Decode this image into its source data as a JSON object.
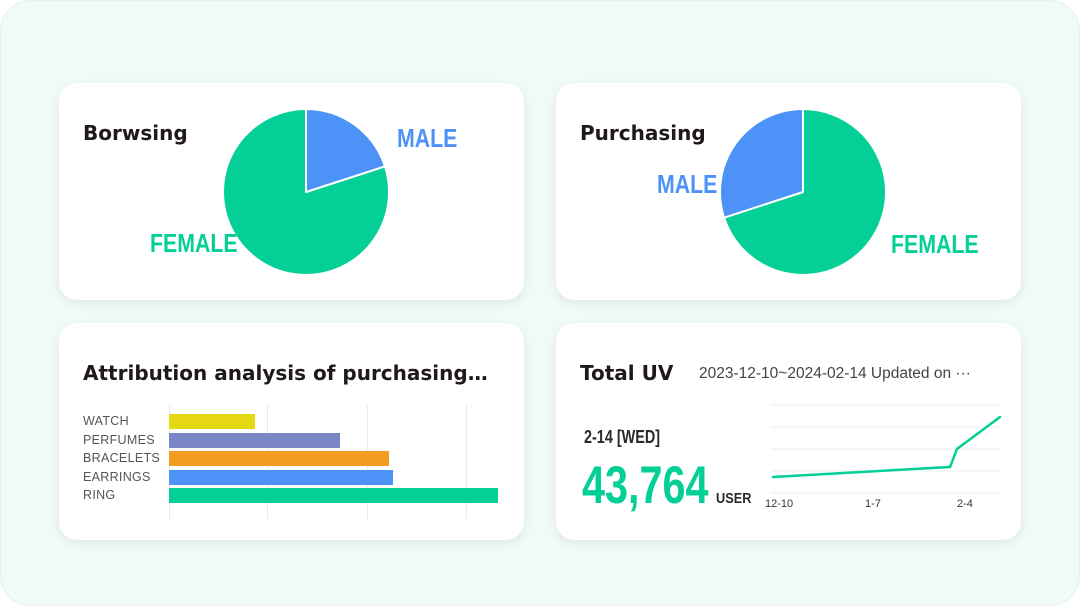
{
  "browsing": {
    "title": "Borwsing",
    "male_label": "MALE",
    "female_label": "FEMALE",
    "male_share": 0.2,
    "female_share": 0.8
  },
  "purchasing": {
    "title": "Purchasing",
    "male_label": "MALE",
    "female_label": "FEMALE",
    "male_share": 0.3,
    "female_share": 0.7
  },
  "attribution": {
    "title": "Attribution analysis of purchasing…",
    "chart_data": {
      "type": "bar",
      "orientation": "horizontal",
      "categories": [
        "WATCH",
        "PERFUMES",
        "BRACELETS",
        "EARRINGS",
        "RING"
      ],
      "values": [
        26,
        52,
        67,
        68,
        100
      ],
      "xlim": [
        0,
        100
      ],
      "colors": [
        "#e6d713",
        "#7b86c7",
        "#f39c22",
        "#4d92f7",
        "#04cf96"
      ]
    }
  },
  "uv": {
    "title": "Total UV",
    "range": "2023-12-10~2024-02-14 Updated on ···",
    "date": "2-14 [WED]",
    "value": "43,764",
    "unit": "USER",
    "chart_data": {
      "type": "line",
      "x_ticks": [
        "12-10",
        "1-7",
        "2-4"
      ],
      "x": [
        0,
        0.56,
        0.78,
        0.81,
        1.0
      ],
      "values": [
        10,
        13.6,
        15,
        24,
        40
      ],
      "ylim": [
        0,
        50
      ]
    }
  },
  "colors": {
    "male": "#4d92f7",
    "female": "#04cf96"
  }
}
